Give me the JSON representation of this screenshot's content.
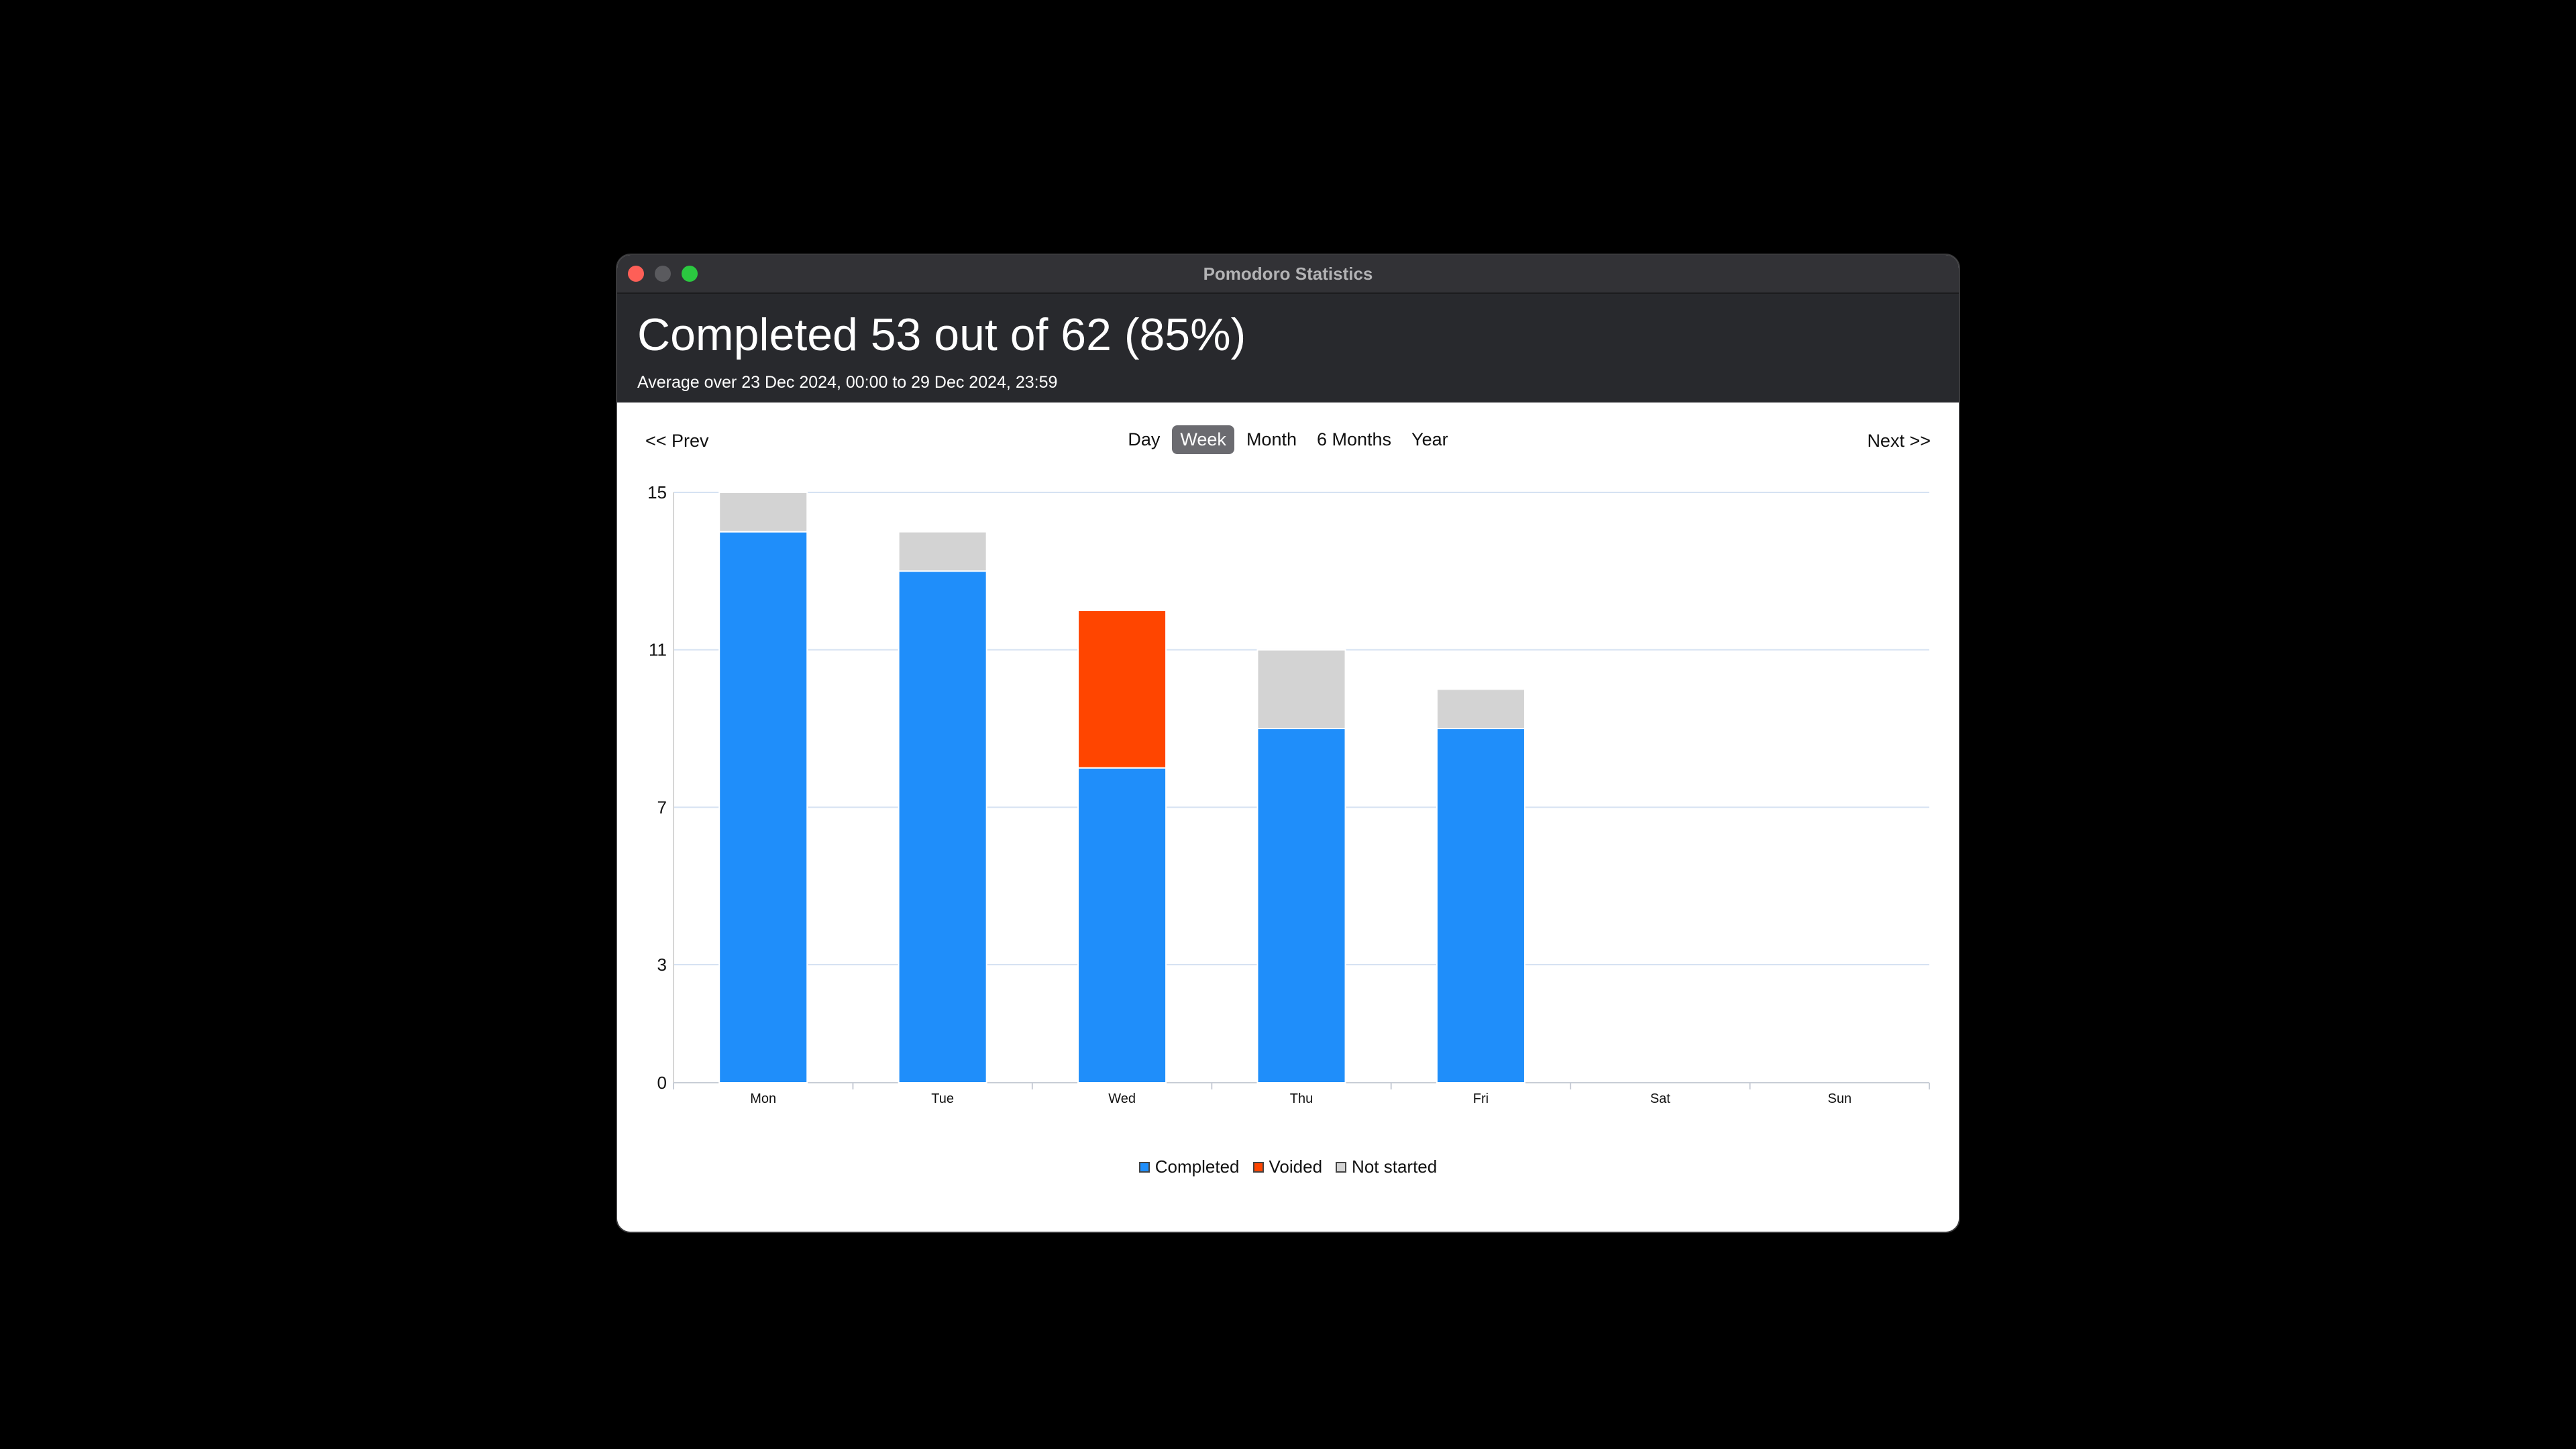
{
  "window": {
    "title": "Pomodoro Statistics"
  },
  "header": {
    "headline": "Completed 53 out of 62 (85%)",
    "subline": "Average over 23 Dec 2024, 00:00 to 29 Dec 2024, 23:59"
  },
  "nav": {
    "prev_label": "<< Prev",
    "next_label": "Next >>",
    "ranges": [
      {
        "label": "Day",
        "active": false
      },
      {
        "label": "Week",
        "active": true
      },
      {
        "label": "Month",
        "active": false
      },
      {
        "label": "6 Months",
        "active": false
      },
      {
        "label": "Year",
        "active": false
      }
    ]
  },
  "colors": {
    "completed": "#1f8efa",
    "voided": "#ff4500",
    "not_started": "#d3d3d3",
    "grid": "#d6e2f2"
  },
  "chart_data": {
    "type": "bar",
    "stacked": true,
    "categories": [
      "Mon",
      "Tue",
      "Wed",
      "Thu",
      "Fri",
      "Sat",
      "Sun"
    ],
    "series": [
      {
        "name": "Completed",
        "values": [
          14,
          13,
          8,
          9,
          9,
          0,
          0
        ]
      },
      {
        "name": "Voided",
        "values": [
          0,
          0,
          4,
          0,
          0,
          0,
          0
        ]
      },
      {
        "name": "Not started",
        "values": [
          1,
          1,
          0,
          2,
          1,
          0,
          0
        ]
      }
    ],
    "y_ticks": [
      0,
      3,
      7,
      11,
      15
    ],
    "ylim": [
      0,
      15
    ],
    "grid": true,
    "legend": "bottom-center"
  }
}
